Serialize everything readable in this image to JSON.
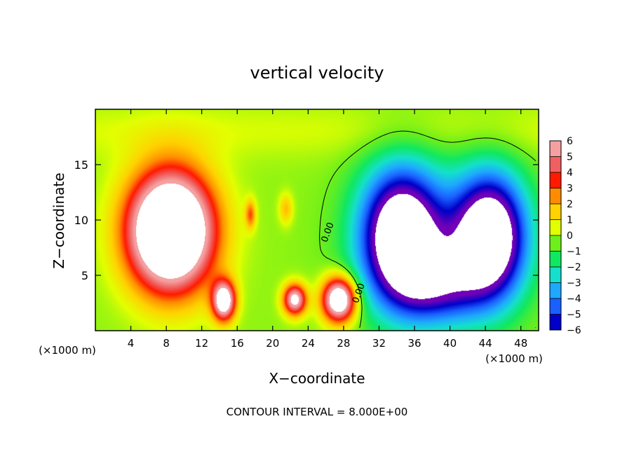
{
  "chart_data": {
    "type": "heatmap",
    "title": "vertical velocity",
    "xlabel": "X−coordinate",
    "ylabel": "Z−coordinate",
    "x_unit_label": "(×1000 m)",
    "z_unit_label": "(×1000 m)",
    "footer": "CONTOUR INTERVAL = 8.000E+00",
    "xlim": [
      0,
      50
    ],
    "ylim": [
      0,
      20
    ],
    "x_ticks": [
      4,
      8,
      12,
      16,
      20,
      24,
      28,
      32,
      36,
      40,
      44,
      48
    ],
    "y_ticks": [
      5,
      10,
      15
    ],
    "contour_labels": [
      {
        "text": "0.00",
        "x": 26.5,
        "y": 8.8
      },
      {
        "text": "0.00",
        "x": 30.0,
        "y": 3.3
      }
    ],
    "colorbar": {
      "levels": [
        6,
        5,
        4,
        3,
        2,
        1,
        0,
        -1,
        -2,
        -3,
        -4,
        -5,
        -6
      ],
      "labels": [
        "6",
        "5",
        "4",
        "3",
        "2",
        "1",
        "0",
        "−1",
        "−2",
        "−3",
        "−4",
        "−5",
        "−6"
      ],
      "colors": [
        "#f5a0a0",
        "#f06060",
        "#ff1a00",
        "#ff8c00",
        "#ffd200",
        "#e2ff00",
        "#6cef1a",
        "#10e860",
        "#14e0cc",
        "#1fa8ff",
        "#1a60ff",
        "#0000c8",
        "#7000b8"
      ]
    },
    "features": [
      {
        "kind": "updraft",
        "x": 8.5,
        "z": 9.0,
        "sx": 4.8,
        "sz": 5.3,
        "peak": 12
      },
      {
        "kind": "updraft",
        "x": 14.5,
        "z": 2.7,
        "sx": 1.3,
        "sz": 1.8,
        "peak": 8
      },
      {
        "kind": "updraft",
        "x": 27.5,
        "z": 2.8,
        "sx": 1.9,
        "sz": 2.0,
        "peak": 9
      },
      {
        "kind": "updraft",
        "x": 22.5,
        "z": 2.8,
        "sx": 1.3,
        "sz": 1.4,
        "peak": 7
      },
      {
        "kind": "updraft",
        "x": 17.5,
        "z": 10.5,
        "sx": 0.6,
        "sz": 1.3,
        "peak": 3
      },
      {
        "kind": "updraft",
        "x": 21.5,
        "z": 11.0,
        "sx": 0.8,
        "sz": 1.4,
        "peak": 2
      },
      {
        "kind": "downdraft",
        "x": 34.5,
        "z": 8.5,
        "sx": 4.5,
        "sz": 6.0,
        "peak": -9
      },
      {
        "kind": "downdraft",
        "x": 44.5,
        "z": 8.5,
        "sx": 4.0,
        "sz": 5.5,
        "peak": -9
      },
      {
        "kind": "downdraft",
        "x": 39.0,
        "z": 4.0,
        "sx": 5.0,
        "sz": 3.5,
        "peak": -4
      }
    ]
  }
}
